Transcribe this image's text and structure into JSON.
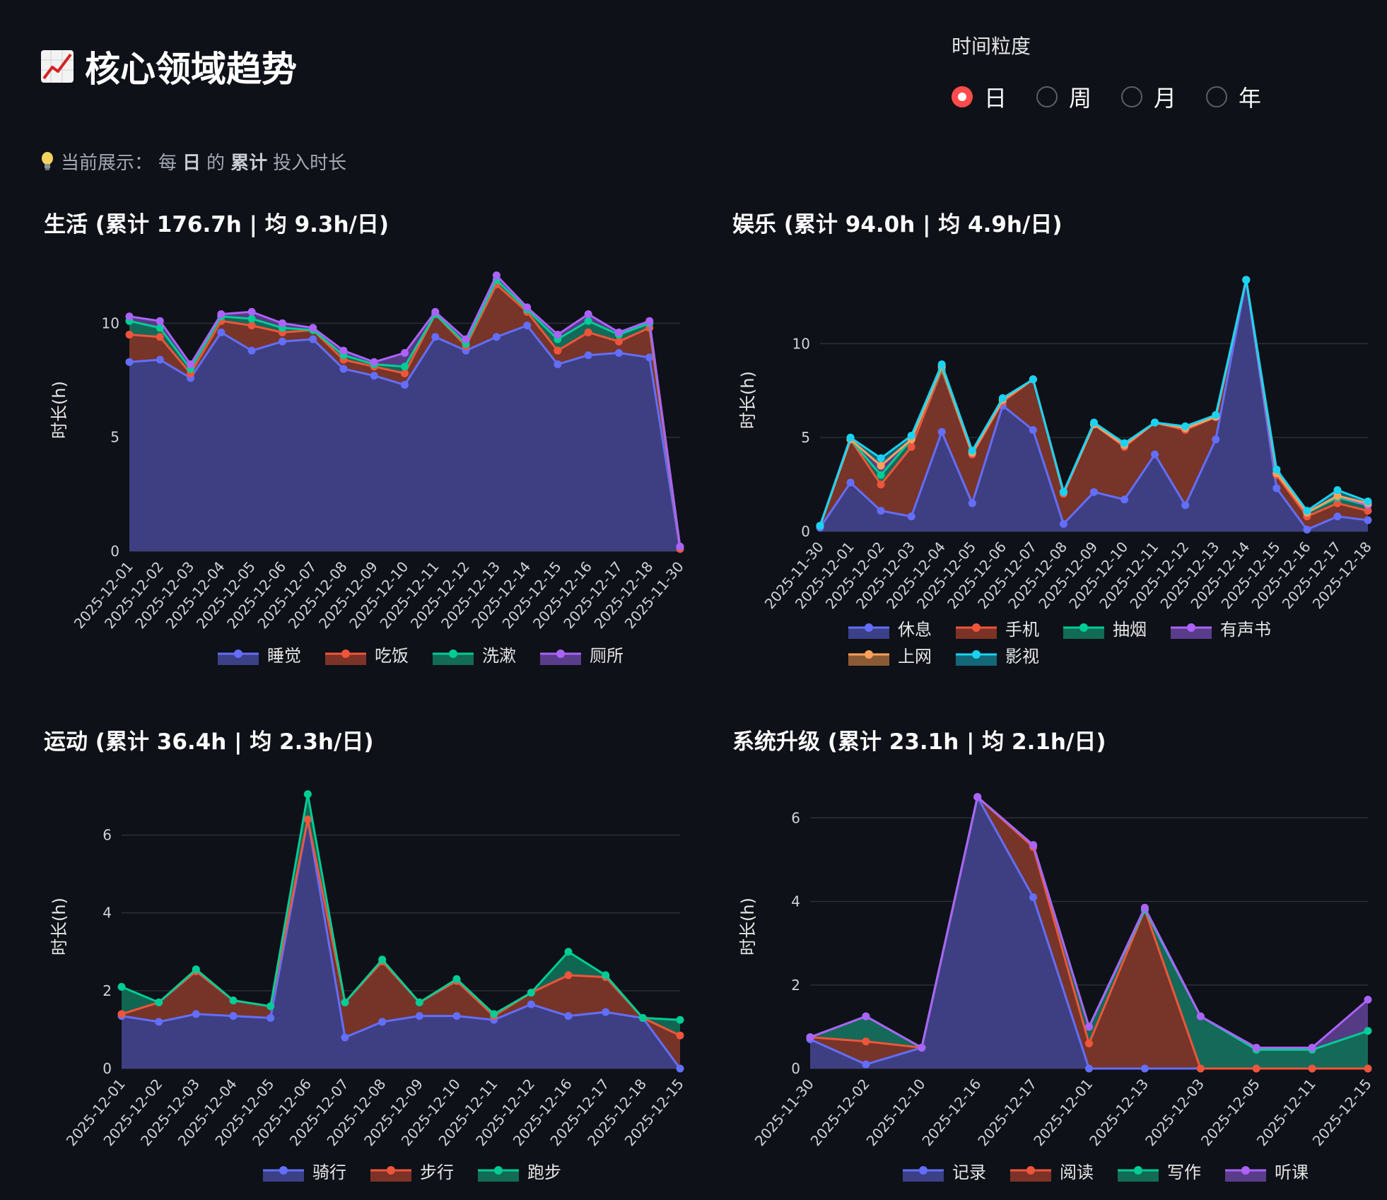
{
  "page": {
    "title": "核心领域趋势",
    "title_icon": "chart-increasing-icon",
    "granularity_label": "时间粒度",
    "granularity_options": [
      "日",
      "周",
      "月",
      "年"
    ],
    "granularity_selected": "日",
    "caption_prefix": "当前展示：",
    "caption_parts": [
      "每",
      "日",
      "的",
      "累计",
      "投入时长"
    ],
    "caption_icon": "lightbulb-icon",
    "accent_color": "#ff4b4b",
    "background": "#0e1117"
  },
  "chart_data": [
    {
      "type": "area",
      "title": "生活 (累计 176.7h | 均 9.3h/日)",
      "ylabel": "时长(h)",
      "ylim": [
        0,
        12.4
      ],
      "yticks": [
        0,
        5,
        10
      ],
      "grid": true,
      "legend_position": "bottom",
      "categories": [
        "2025-12-01",
        "2025-12-02",
        "2025-12-03",
        "2025-12-04",
        "2025-12-05",
        "2025-12-06",
        "2025-12-07",
        "2025-12-08",
        "2025-12-09",
        "2025-12-10",
        "2025-12-11",
        "2025-12-12",
        "2025-12-13",
        "2025-12-14",
        "2025-12-15",
        "2025-12-16",
        "2025-12-17",
        "2025-12-18",
        "2025-11-30"
      ],
      "series": [
        {
          "name": "睡觉",
          "color": "#636efa",
          "fill": "#3b4087",
          "cumulative": [
            8.3,
            8.4,
            7.6,
            9.6,
            8.8,
            9.2,
            9.3,
            8.0,
            7.7,
            7.3,
            9.4,
            8.8,
            9.4,
            9.9,
            8.2,
            8.6,
            8.7,
            8.5,
            0.1
          ]
        },
        {
          "name": "吃饭",
          "color": "#ef553b",
          "fill": "#7c3227",
          "cumulative": [
            9.5,
            9.4,
            7.8,
            10.1,
            9.9,
            9.6,
            9.7,
            8.4,
            8.1,
            7.8,
            10.4,
            9.0,
            11.7,
            10.5,
            8.8,
            9.6,
            9.2,
            9.8,
            0.1
          ]
        },
        {
          "name": "洗漱",
          "color": "#00cc96",
          "fill": "#126b55",
          "cumulative": [
            10.1,
            9.8,
            8.0,
            10.3,
            10.2,
            9.8,
            9.7,
            8.6,
            8.2,
            8.1,
            10.4,
            9.1,
            11.9,
            10.6,
            9.3,
            10.1,
            9.5,
            10.0,
            0.2
          ]
        },
        {
          "name": "厕所",
          "color": "#ab63fa",
          "fill": "#5a3d8a",
          "cumulative": [
            10.3,
            10.1,
            8.2,
            10.4,
            10.5,
            10.0,
            9.8,
            8.8,
            8.3,
            8.7,
            10.5,
            9.3,
            12.1,
            10.7,
            9.5,
            10.4,
            9.6,
            10.1,
            0.2
          ]
        }
      ]
    },
    {
      "type": "area",
      "title": "娱乐 (累计 94.0h | 均 4.9h/日)",
      "ylabel": "时长(h)",
      "ylim": [
        0,
        14
      ],
      "yticks": [
        0,
        5,
        10
      ],
      "grid": true,
      "legend_position": "bottom",
      "categories": [
        "2025-11-30",
        "2025-12-01",
        "2025-12-02",
        "2025-12-03",
        "2025-12-04",
        "2025-12-05",
        "2025-12-06",
        "2025-12-07",
        "2025-12-08",
        "2025-12-09",
        "2025-12-10",
        "2025-12-11",
        "2025-12-12",
        "2025-12-13",
        "2025-12-14",
        "2025-12-15",
        "2025-12-16",
        "2025-12-17",
        "2025-12-18"
      ],
      "series": [
        {
          "name": "休息",
          "color": "#636efa",
          "fill": "#3b4087",
          "cumulative": [
            0.2,
            2.6,
            1.1,
            0.8,
            5.3,
            1.5,
            6.7,
            5.4,
            0.4,
            2.1,
            1.7,
            4.1,
            1.4,
            4.9,
            13.4,
            2.3,
            0.1,
            0.8,
            0.6
          ]
        },
        {
          "name": "手机",
          "color": "#ef553b",
          "fill": "#7c3227",
          "cumulative": [
            0.3,
            4.9,
            2.5,
            4.5,
            8.6,
            4.1,
            6.9,
            8.1,
            2.0,
            5.7,
            4.5,
            5.8,
            5.4,
            6.1,
            13.4,
            3.0,
            0.8,
            1.5,
            1.1
          ]
        },
        {
          "name": "抽烟",
          "color": "#00cc96",
          "fill": "#126b55",
          "cumulative": [
            0.3,
            4.9,
            3.0,
            4.9,
            8.7,
            4.2,
            7.0,
            8.1,
            2.1,
            5.7,
            4.6,
            5.8,
            5.5,
            6.1,
            13.4,
            3.1,
            1.0,
            1.8,
            1.4
          ]
        },
        {
          "name": "有声书",
          "color": "#ab63fa",
          "fill": "#5a3d8a",
          "cumulative": [
            0.3,
            4.9,
            3.5,
            4.9,
            8.8,
            4.2,
            7.0,
            8.1,
            2.1,
            5.7,
            4.6,
            5.8,
            5.5,
            6.1,
            13.4,
            3.1,
            1.0,
            1.9,
            1.4
          ]
        },
        {
          "name": "上网",
          "color": "#ffa15a",
          "fill": "#8a5a35",
          "cumulative": [
            0.3,
            4.9,
            3.5,
            4.9,
            8.8,
            4.2,
            7.0,
            8.1,
            2.1,
            5.7,
            4.6,
            5.8,
            5.5,
            6.1,
            13.4,
            3.1,
            1.0,
            1.9,
            1.5
          ]
        },
        {
          "name": "影视",
          "color": "#19d3f3",
          "fill": "#136778",
          "cumulative": [
            0.3,
            5.0,
            3.9,
            5.1,
            8.9,
            4.3,
            7.1,
            8.1,
            2.1,
            5.8,
            4.7,
            5.8,
            5.6,
            6.2,
            13.4,
            3.3,
            1.1,
            2.2,
            1.6
          ]
        }
      ]
    },
    {
      "type": "area",
      "title": "运动 (累计 36.4h | 均 2.3h/日)",
      "ylabel": "时长(h)",
      "ylim": [
        0,
        7.3
      ],
      "yticks": [
        0,
        2,
        4,
        6
      ],
      "grid": true,
      "legend_position": "bottom",
      "categories": [
        "2025-12-01",
        "2025-12-02",
        "2025-12-03",
        "2025-12-04",
        "2025-12-05",
        "2025-12-06",
        "2025-12-07",
        "2025-12-08",
        "2025-12-09",
        "2025-12-10",
        "2025-12-11",
        "2025-12-12",
        "2025-12-16",
        "2025-12-17",
        "2025-12-18",
        "2025-12-15"
      ],
      "series": [
        {
          "name": "骑行",
          "color": "#636efa",
          "fill": "#3b4087",
          "cumulative": [
            1.35,
            1.2,
            1.4,
            1.35,
            1.3,
            6.4,
            0.8,
            1.2,
            1.35,
            1.35,
            1.25,
            1.65,
            1.35,
            1.45,
            1.3,
            0.0
          ]
        },
        {
          "name": "步行",
          "color": "#ef553b",
          "fill": "#7c3227",
          "cumulative": [
            1.4,
            1.7,
            2.5,
            1.75,
            1.6,
            6.4,
            1.7,
            2.75,
            1.7,
            2.25,
            1.35,
            1.95,
            2.4,
            2.35,
            1.3,
            0.85
          ]
        },
        {
          "name": "跑步",
          "color": "#00cc96",
          "fill": "#126b55",
          "cumulative": [
            2.1,
            1.7,
            2.55,
            1.75,
            1.6,
            7.05,
            1.7,
            2.8,
            1.7,
            2.3,
            1.4,
            1.95,
            3.0,
            2.4,
            1.3,
            1.25
          ]
        }
      ]
    },
    {
      "type": "area",
      "title": "系统升级 (累计 23.1h | 均 2.1h/日)",
      "ylabel": "时长(h)",
      "ylim": [
        0,
        6.8
      ],
      "yticks": [
        0,
        2,
        4,
        6
      ],
      "grid": true,
      "legend_position": "bottom",
      "categories": [
        "2025-11-30",
        "2025-12-02",
        "2025-12-10",
        "2025-12-16",
        "2025-12-17",
        "2025-12-01",
        "2025-12-13",
        "2025-12-03",
        "2025-12-05",
        "2025-12-11",
        "2025-12-15"
      ],
      "series": [
        {
          "name": "记录",
          "color": "#636efa",
          "fill": "#3b4087",
          "cumulative": [
            0.7,
            0.1,
            0.5,
            6.5,
            4.1,
            0.0,
            0.0,
            0.0,
            0.0,
            0.0,
            0.0
          ]
        },
        {
          "name": "阅读",
          "color": "#ef553b",
          "fill": "#7c3227",
          "cumulative": [
            0.75,
            0.65,
            0.5,
            6.5,
            5.3,
            0.6,
            3.8,
            0.0,
            0.0,
            0.0,
            0.0
          ]
        },
        {
          "name": "写作",
          "color": "#00cc96",
          "fill": "#126b55",
          "cumulative": [
            0.75,
            1.25,
            0.5,
            6.5,
            5.35,
            1.0,
            3.8,
            1.25,
            0.45,
            0.45,
            0.9
          ]
        },
        {
          "name": "听课",
          "color": "#ab63fa",
          "fill": "#5a3d8a",
          "cumulative": [
            0.75,
            1.25,
            0.5,
            6.5,
            5.35,
            1.0,
            3.85,
            1.25,
            0.5,
            0.5,
            1.65
          ]
        }
      ]
    }
  ]
}
